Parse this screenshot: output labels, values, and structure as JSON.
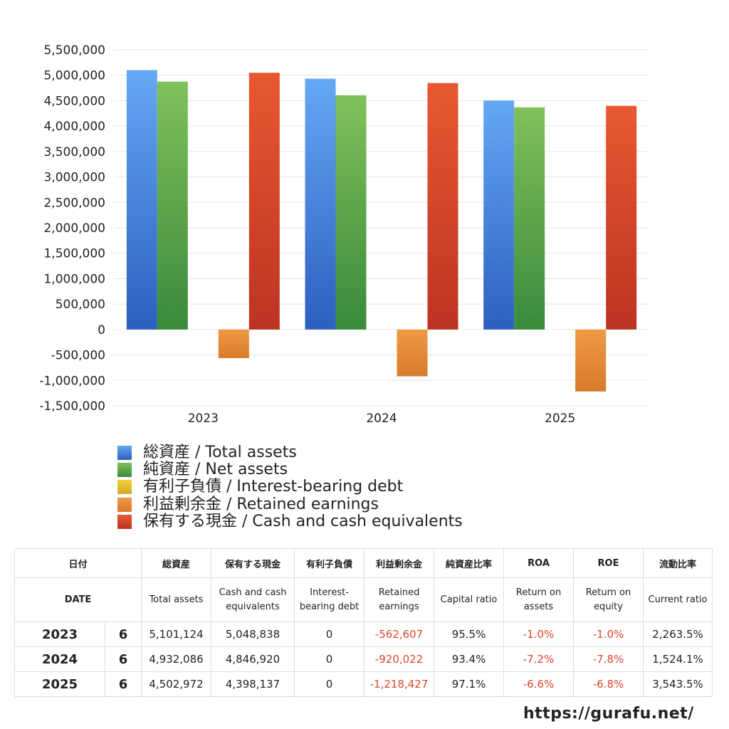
{
  "chart_data": {
    "type": "bar",
    "categories": [
      "2023",
      "2024",
      "2025"
    ],
    "ylim": [
      -1500000,
      5500000
    ],
    "y_ticks": [
      "5,500,000",
      "5,000,000",
      "4,500,000",
      "4,000,000",
      "3,500,000",
      "3,000,000",
      "2,500,000",
      "2,000,000",
      "1,500,000",
      "1,000,000",
      "500,000",
      "0",
      "-500,000",
      "-1,000,000",
      "-1,500,000"
    ],
    "grid": true,
    "legend_position": "bottom",
    "series": [
      {
        "name": "総資産 / Total assets",
        "color_top": "#64a8f4",
        "color_bottom": "#2d5fc0",
        "values": [
          5101124,
          4932086,
          4502972
        ]
      },
      {
        "name": "純資産 / Net assets",
        "color_top": "#80c15a",
        "color_bottom": "#3a8a3c",
        "values": [
          4874000,
          4607000,
          4370000
        ]
      },
      {
        "name": "有利子負債 / Interest-bearing debt",
        "color_top": "#f2d13a",
        "color_bottom": "#d3a827",
        "values": [
          0,
          0,
          0
        ]
      },
      {
        "name": "利益剰余金 / Retained earnings",
        "color_top": "#ee9a44",
        "color_bottom": "#d97a2c",
        "values": [
          -562607,
          -920022,
          -1218427
        ]
      },
      {
        "name": "保有する現金 /  Cash and cash equivalents",
        "color_top": "#e85830",
        "color_bottom": "#bd3322",
        "values": [
          5048838,
          4846920,
          4398137
        ]
      }
    ]
  },
  "table": {
    "header_ja": {
      "date": "日付",
      "total_assets": "総資産",
      "cash": "保有する現金",
      "debt": "有利子負債",
      "retained": "利益剰余金",
      "capital_ratio": "純資産比率",
      "roa": "ROA",
      "roe": "ROE",
      "current_ratio": "流動比率"
    },
    "header_en": {
      "date": "DATE",
      "total_assets": "Total assets",
      "cash": "Cash and cash equivalents",
      "debt": "Interest-bearing debt",
      "retained": "Retained earnings",
      "capital_ratio": "Capital ratio",
      "roa": "Return on assets",
      "roe": "Return on equity",
      "current_ratio": "Current ratio"
    },
    "rows": [
      {
        "year": "2023",
        "month": "6",
        "total_assets": "5,101,124",
        "cash": "5,048,838",
        "debt": "0",
        "retained": "-562,607",
        "capital_ratio": "95.5%",
        "roa": "-1.0%",
        "roe": "-1.0%",
        "current_ratio": "2,263.5%"
      },
      {
        "year": "2024",
        "month": "6",
        "total_assets": "4,932,086",
        "cash": "4,846,920",
        "debt": "0",
        "retained": "-920,022",
        "capital_ratio": "93.4%",
        "roa": "-7.2%",
        "roe": "-7.8%",
        "current_ratio": "1,524.1%"
      },
      {
        "year": "2025",
        "month": "6",
        "total_assets": "4,502,972",
        "cash": "4,398,137",
        "debt": "0",
        "retained": "-1,218,427",
        "capital_ratio": "97.1%",
        "roa": "-6.6%",
        "roe": "-6.8%",
        "current_ratio": "3,543.5%"
      }
    ]
  },
  "source": "https://gurafu.net/"
}
